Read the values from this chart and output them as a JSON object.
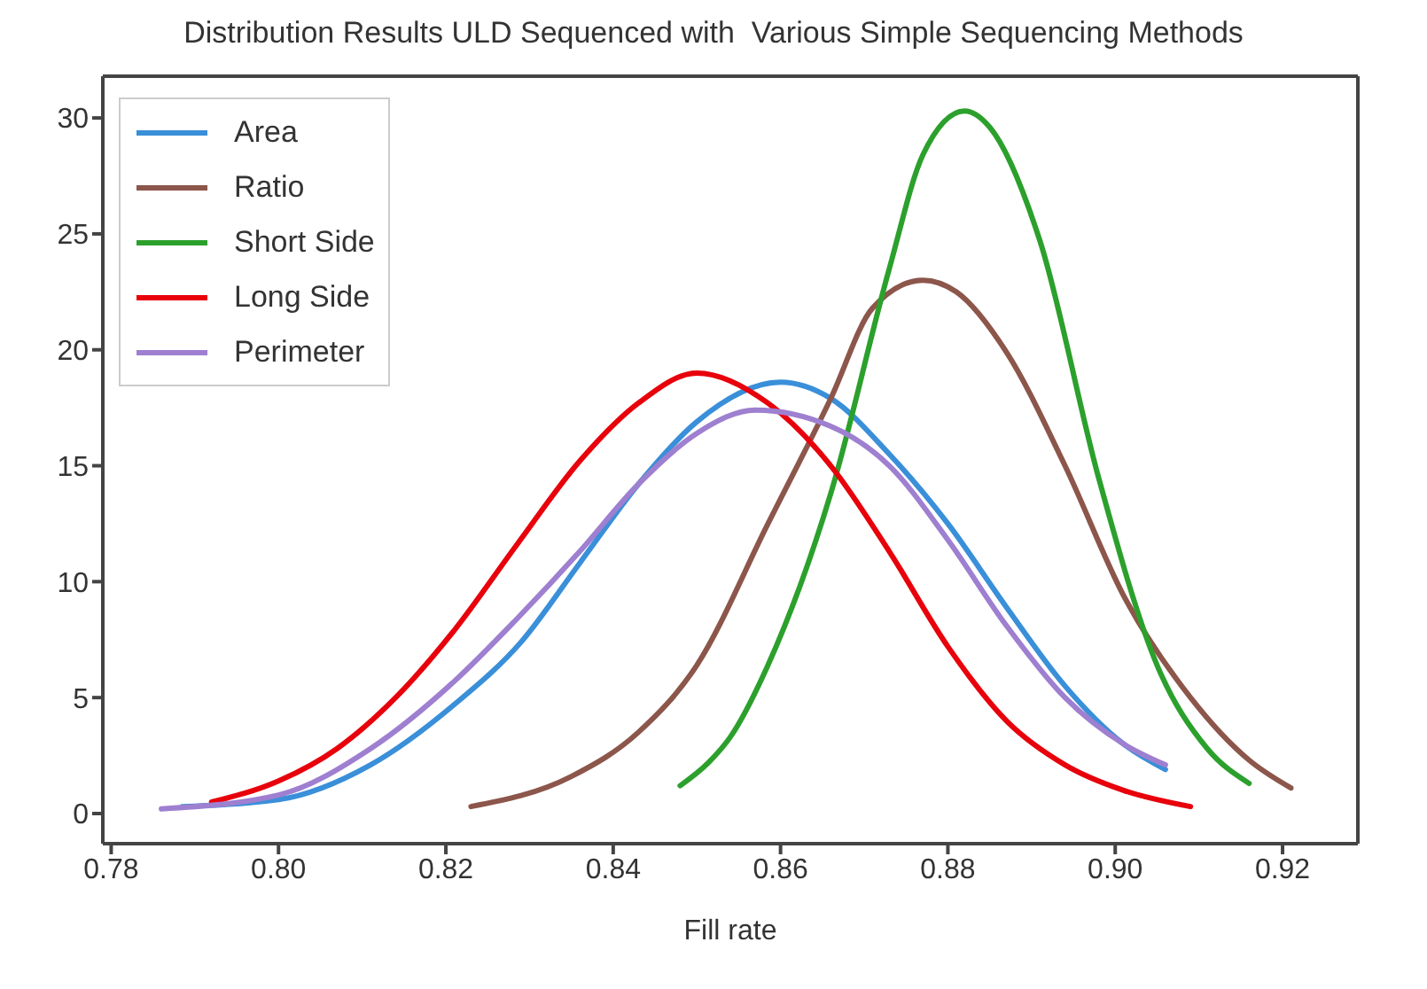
{
  "chart_data": {
    "type": "line",
    "title": "Distribution Results ULD Sequenced with  Various Simple Sequencing Methods",
    "xlabel": "Fill rate",
    "xlim": [
      0.779,
      0.929
    ],
    "xticks": [
      {
        "value": 0.78,
        "label": "0.78"
      },
      {
        "value": 0.8,
        "label": "0.80"
      },
      {
        "value": 0.82,
        "label": "0.82"
      },
      {
        "value": 0.84,
        "label": "0.84"
      },
      {
        "value": 0.86,
        "label": "0.86"
      },
      {
        "value": 0.88,
        "label": "0.88"
      },
      {
        "value": 0.9,
        "label": "0.90"
      },
      {
        "value": 0.92,
        "label": "0.92"
      }
    ],
    "ylim": [
      -1.3,
      31.8
    ],
    "yticks": [
      0,
      5,
      10,
      15,
      20,
      25,
      30
    ],
    "grid": false,
    "legend": "top left",
    "marker": "none",
    "line_style": "solid",
    "series": [
      {
        "name": "Area",
        "color": "#3a8fd9",
        "x": [
          0.7885,
          0.8,
          0.811,
          0.821,
          0.829,
          0.836,
          0.843,
          0.85,
          0.86,
          0.866,
          0.873,
          0.88,
          0.887,
          0.894,
          0.901,
          0.906
        ],
        "values": [
          0.3,
          0.6,
          2.1,
          4.7,
          7.4,
          10.8,
          14.2,
          16.9,
          18.6,
          17.9,
          15.5,
          12.5,
          8.9,
          5.5,
          3.0,
          1.9
        ]
      },
      {
        "name": "Ratio",
        "color": "#8c564b",
        "x": [
          0.823,
          0.835,
          0.843,
          0.85,
          0.8585,
          0.866,
          0.871,
          0.877,
          0.881,
          0.887,
          0.894,
          0.901,
          0.909,
          0.916,
          0.921
        ],
        "values": [
          0.3,
          1.6,
          3.5,
          6.4,
          12.5,
          17.9,
          21.8,
          23.0,
          22.5,
          19.9,
          15.0,
          9.4,
          5.0,
          2.3,
          1.1
        ]
      },
      {
        "name": "Short Side",
        "color": "#2ca02c",
        "x": [
          0.848,
          0.8514,
          0.854,
          0.8585,
          0.866,
          0.873,
          0.877,
          0.882,
          0.885,
          0.891,
          0.898,
          0.905,
          0.911,
          0.916
        ],
        "values": [
          1.2,
          2.2,
          3.3,
          6.4,
          13.8,
          23.5,
          28.4,
          30.3,
          29.6,
          24.7,
          14.5,
          6.4,
          2.8,
          1.3
        ]
      },
      {
        "name": "Long Side",
        "color": "#e8000b",
        "x": [
          0.792,
          0.8,
          0.807,
          0.814,
          0.821,
          0.8285,
          0.836,
          0.843,
          0.85,
          0.8585,
          0.866,
          0.873,
          0.88,
          0.887,
          0.894,
          0.901,
          0.909
        ],
        "values": [
          0.5,
          1.4,
          2.8,
          5.0,
          7.9,
          11.6,
          15.2,
          17.7,
          19.0,
          17.7,
          15.0,
          11.3,
          7.2,
          4.0,
          2.1,
          1.0,
          0.3
        ]
      },
      {
        "name": "Perimeter",
        "color": "#9e7fd0",
        "x": [
          0.786,
          0.8,
          0.811,
          0.821,
          0.8285,
          0.836,
          0.843,
          0.85,
          0.857,
          0.866,
          0.873,
          0.88,
          0.887,
          0.894,
          0.901,
          0.906
        ],
        "values": [
          0.2,
          0.8,
          2.8,
          5.7,
          8.4,
          11.3,
          14.2,
          16.4,
          17.4,
          16.7,
          15.0,
          11.8,
          8.1,
          5.0,
          3.0,
          2.1
        ]
      }
    ]
  }
}
